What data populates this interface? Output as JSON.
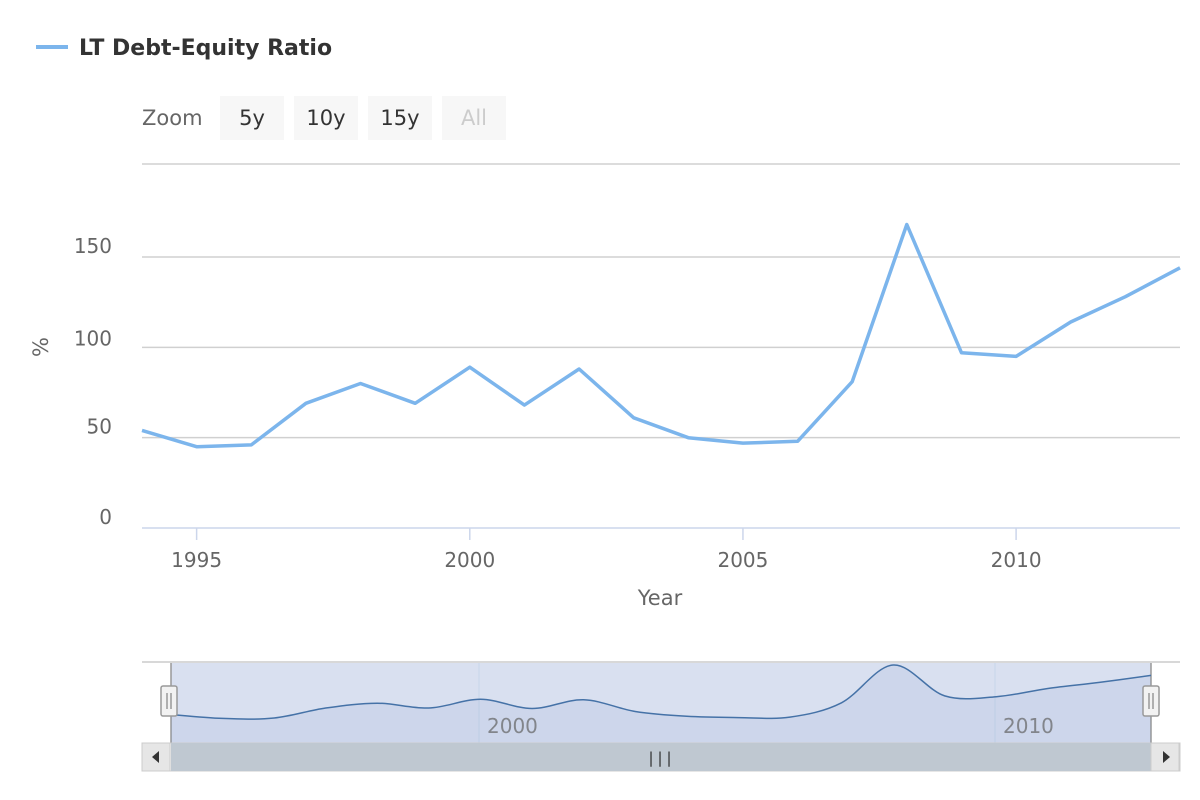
{
  "legend": {
    "label": "LT Debt-Equity Ratio",
    "color": "#7cb5ec"
  },
  "zoom": {
    "label": "Zoom",
    "buttons": [
      {
        "label": "5y",
        "enabled": true
      },
      {
        "label": "10y",
        "enabled": true
      },
      {
        "label": "15y",
        "enabled": true
      },
      {
        "label": "All",
        "enabled": false
      }
    ]
  },
  "navigator": {
    "labels": [
      "2000",
      "2010"
    ],
    "handle_glyph": "|||"
  },
  "chart_data": {
    "type": "line",
    "title": "",
    "xlabel": "Year",
    "ylabel": "%",
    "xlim": [
      1994,
      2013
    ],
    "ylim": [
      0,
      200
    ],
    "yticks": [
      0,
      50,
      100,
      150
    ],
    "xticks": [
      1995,
      2000,
      2005,
      2010
    ],
    "grid": true,
    "legend_position": "top-left",
    "series": [
      {
        "name": "LT Debt-Equity Ratio",
        "color": "#7cb5ec",
        "x": [
          1994,
          1995,
          1996,
          1997,
          1998,
          1999,
          2000,
          2001,
          2002,
          2003,
          2004,
          2005,
          2006,
          2007,
          2008,
          2009,
          2010,
          2011,
          2012,
          2013
        ],
        "y": [
          54,
          45,
          46,
          69,
          80,
          69,
          89,
          68,
          88,
          61,
          50,
          47,
          48,
          81,
          168,
          97,
          95,
          114,
          128,
          144
        ]
      }
    ]
  }
}
